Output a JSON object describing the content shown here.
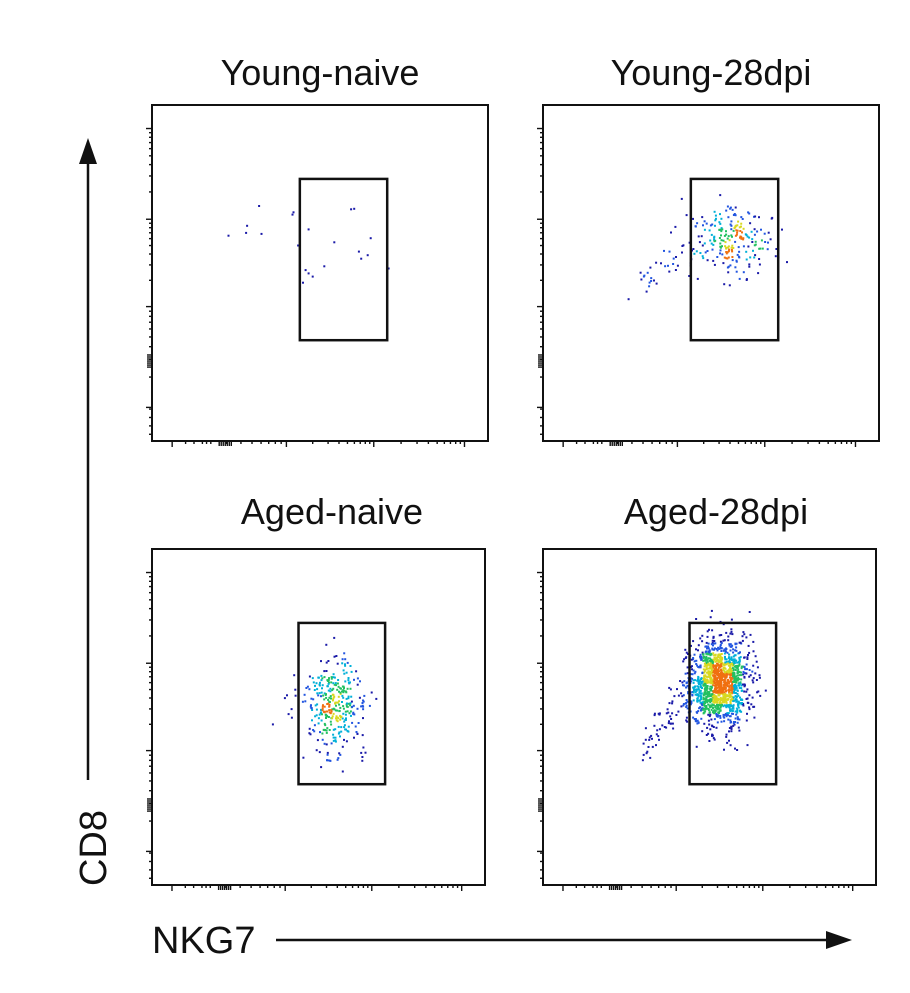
{
  "figure": {
    "x_axis_label": "NKG7",
    "y_axis_label": "CD8"
  },
  "chart_data": [
    {
      "type": "scatter",
      "title": "Young-naive",
      "xlabel": "NKG7",
      "ylabel": "CD8",
      "gate": {
        "x": [
          0.44,
          0.7
        ],
        "y": [
          0.3,
          0.78
        ]
      },
      "density": "very low",
      "population": {
        "count": 22,
        "center": [
          0.5,
          0.6
        ],
        "spread": [
          0.12,
          0.08
        ]
      },
      "color_scale": [
        "#1a1aa8",
        "#2255e0",
        "#00b0d8",
        "#22c060",
        "#d8d820",
        "#f07010"
      ]
    },
    {
      "type": "scatter",
      "title": "Young-28dpi",
      "xlabel": "NKG7",
      "ylabel": "CD8",
      "gate": {
        "x": [
          0.44,
          0.7
        ],
        "y": [
          0.3,
          0.78
        ]
      },
      "density": "low",
      "population": {
        "count": 220,
        "center": [
          0.56,
          0.6
        ],
        "spread": [
          0.06,
          0.05
        ]
      },
      "tail": {
        "count": 30,
        "from": [
          0.27,
          0.44
        ],
        "to": [
          0.44,
          0.58
        ]
      },
      "color_scale": [
        "#1a1aa8",
        "#2255e0",
        "#00b0d8",
        "#22c060",
        "#d8d820",
        "#f07010"
      ]
    },
    {
      "type": "scatter",
      "title": "Aged-naive",
      "xlabel": "NKG7",
      "ylabel": "CD8",
      "gate": {
        "x": [
          0.44,
          0.7
        ],
        "y": [
          0.3,
          0.78
        ]
      },
      "density": "medium",
      "population": {
        "count": 330,
        "center": [
          0.55,
          0.53
        ],
        "spread": [
          0.045,
          0.075
        ]
      },
      "tail": {
        "count": 8,
        "from": [
          0.38,
          0.5
        ],
        "to": [
          0.44,
          0.55
        ]
      },
      "color_scale": [
        "#1a1aa8",
        "#2255e0",
        "#00b0d8",
        "#22c060",
        "#d8d820",
        "#f07010"
      ]
    },
    {
      "type": "scatter",
      "title": "Aged-28dpi",
      "xlabel": "NKG7",
      "ylabel": "CD8",
      "gate": {
        "x": [
          0.44,
          0.7
        ],
        "y": [
          0.3,
          0.78
        ]
      },
      "density": "high",
      "population": {
        "count": 1400,
        "center": [
          0.53,
          0.6
        ],
        "spread": [
          0.045,
          0.065
        ]
      },
      "tail": {
        "count": 70,
        "from": [
          0.3,
          0.4
        ],
        "to": [
          0.46,
          0.62
        ]
      },
      "color_scale": [
        "#1a1aa8",
        "#2255e0",
        "#00b0d8",
        "#22c060",
        "#d8d820",
        "#f07010"
      ]
    }
  ]
}
